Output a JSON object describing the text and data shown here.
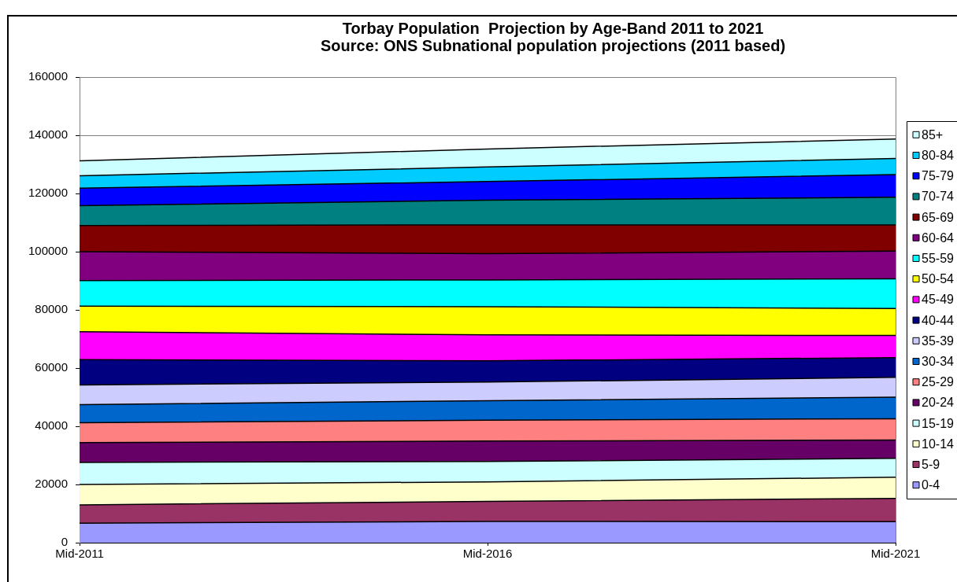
{
  "chart_data": {
    "type": "area",
    "title": "Torbay Population  Projection by Age-Band 2011 to 2021",
    "subtitle": "Source: ONS Subnational population projections (2011 based)",
    "categories": [
      "Mid-2011",
      "Mid-2016",
      "Mid-2021"
    ],
    "stacked": true,
    "ylim": [
      0,
      160000
    ],
    "yticks": [
      0,
      20000,
      40000,
      60000,
      80000,
      100000,
      120000,
      140000,
      160000
    ],
    "grid": "y",
    "legend": "right",
    "series": [
      {
        "name": "0-4",
        "color": "#9999ff",
        "values": [
          6700,
          7300,
          7200
        ]
      },
      {
        "name": "5-9",
        "color": "#993366",
        "values": [
          6300,
          6900,
          8000
        ]
      },
      {
        "name": "10-14",
        "color": "#ffffcc",
        "values": [
          7000,
          6700,
          7300
        ]
      },
      {
        "name": "15-19",
        "color": "#ccffff",
        "values": [
          7600,
          7000,
          6500
        ]
      },
      {
        "name": "20-24",
        "color": "#660066",
        "values": [
          6800,
          7000,
          6300
        ]
      },
      {
        "name": "25-29",
        "color": "#ff8080",
        "values": [
          6800,
          7200,
          7300
        ]
      },
      {
        "name": "30-34",
        "color": "#0066cc",
        "values": [
          6200,
          6700,
          7400
        ]
      },
      {
        "name": "35-39",
        "color": "#ccccff",
        "values": [
          6800,
          6400,
          6800
        ]
      },
      {
        "name": "40-44",
        "color": "#000080",
        "values": [
          8700,
          7300,
          6800
        ]
      },
      {
        "name": "45-49",
        "color": "#ff00ff",
        "values": [
          9600,
          8900,
          7600
        ]
      },
      {
        "name": "50-54",
        "color": "#ffff00",
        "values": [
          8800,
          9700,
          9300
        ]
      },
      {
        "name": "55-59",
        "color": "#00ffff",
        "values": [
          8800,
          9200,
          10200
        ]
      },
      {
        "name": "60-64",
        "color": "#800080",
        "values": [
          9900,
          9000,
          9500
        ]
      },
      {
        "name": "65-69",
        "color": "#800000",
        "values": [
          9000,
          9900,
          9000
        ]
      },
      {
        "name": "70-74",
        "color": "#008080",
        "values": [
          6800,
          8500,
          9500
        ]
      },
      {
        "name": "75-79",
        "color": "#0000ff",
        "values": [
          6000,
          6400,
          7800
        ]
      },
      {
        "name": "80-84",
        "color": "#00ccff",
        "values": [
          4300,
          5000,
          5500
        ]
      },
      {
        "name": "85+",
        "color": "#ccffff",
        "values": [
          5100,
          6200,
          6700
        ]
      }
    ]
  }
}
